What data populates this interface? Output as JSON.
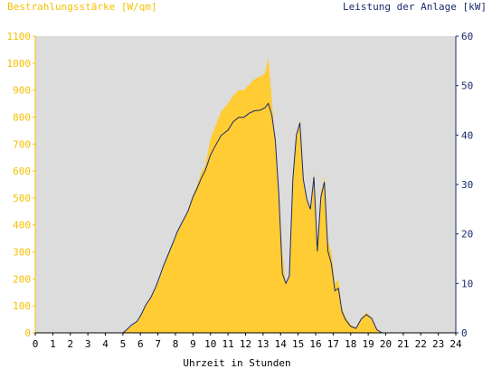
{
  "chart_data": {
    "type": "area",
    "title_left": "Bestrahlungsstärke [W/qm]",
    "title_right": "Leistung der Anlage [kW]",
    "xlabel": "Uhrzeit in Stunden",
    "x_ticks": [
      0,
      1,
      2,
      3,
      4,
      5,
      6,
      7,
      8,
      9,
      10,
      11,
      12,
      13,
      14,
      15,
      16,
      17,
      18,
      19,
      20,
      21,
      22,
      23,
      24
    ],
    "y_left_ticks": [
      0,
      100,
      200,
      300,
      400,
      500,
      600,
      700,
      800,
      900,
      1000,
      1100
    ],
    "y_right_ticks": [
      0,
      10,
      20,
      30,
      40,
      50,
      60
    ],
    "xlim": [
      0,
      24
    ],
    "ylim_left": [
      0,
      1100
    ],
    "ylim_right": [
      0,
      60
    ],
    "grid": false,
    "colors": {
      "plot_bg": "#dcdcdc",
      "irradiance": "#ffcc33",
      "power": "#1a2a6e",
      "left_axis_text": "#f5c000",
      "right_axis_text": "#1a2a6e",
      "axis_text": "#000000"
    },
    "series": [
      {
        "axis": "left",
        "style": "filled-area",
        "x": [
          0,
          5.0,
          5.2,
          5.5,
          5.8,
          6.0,
          6.3,
          6.6,
          6.9,
          7.1,
          7.3,
          7.6,
          7.9,
          8.1,
          8.4,
          8.7,
          9.0,
          9.2,
          9.5,
          9.7,
          10.0,
          10.3,
          10.6,
          11.0,
          11.3,
          11.6,
          11.9,
          12.2,
          12.5,
          12.8,
          13.1,
          13.3,
          13.5,
          13.7,
          13.9,
          14.1,
          14.3,
          14.5,
          14.7,
          14.9,
          15.1,
          15.3,
          15.5,
          15.7,
          15.9,
          16.1,
          16.3,
          16.5,
          16.7,
          16.9,
          17.1,
          17.3,
          17.5,
          17.7,
          18.0,
          18.3,
          18.6,
          18.9,
          19.2,
          19.5,
          19.8,
          20.0,
          24
        ],
        "values": [
          0,
          0,
          10,
          25,
          40,
          60,
          100,
          130,
          170,
          200,
          240,
          290,
          340,
          370,
          410,
          450,
          510,
          540,
          600,
          620,
          720,
          770,
          820,
          850,
          880,
          900,
          900,
          920,
          940,
          950,
          960,
          1020,
          860,
          700,
          520,
          300,
          180,
          210,
          560,
          720,
          790,
          560,
          490,
          460,
          600,
          340,
          520,
          580,
          340,
          300,
          180,
          200,
          90,
          60,
          30,
          20,
          55,
          75,
          55,
          15,
          0,
          0,
          0
        ]
      },
      {
        "axis": "right",
        "style": "line",
        "x": [
          0,
          5.0,
          5.2,
          5.5,
          5.8,
          6.0,
          6.3,
          6.6,
          6.9,
          7.1,
          7.3,
          7.6,
          7.9,
          8.1,
          8.4,
          8.7,
          9.0,
          9.2,
          9.5,
          9.7,
          10.0,
          10.3,
          10.6,
          11.0,
          11.3,
          11.6,
          11.9,
          12.2,
          12.5,
          12.8,
          13.1,
          13.3,
          13.5,
          13.7,
          13.9,
          14.1,
          14.3,
          14.5,
          14.7,
          14.9,
          15.1,
          15.3,
          15.5,
          15.7,
          15.9,
          16.1,
          16.3,
          16.5,
          16.7,
          16.9,
          17.1,
          17.3,
          17.5,
          17.7,
          18.0,
          18.3,
          18.6,
          18.9,
          19.2,
          19.5,
          19.8,
          20.0,
          24
        ],
        "values": [
          0,
          0,
          0.6,
          1.6,
          2.3,
          3.4,
          5.6,
          7.2,
          9.5,
          11.4,
          13.4,
          16.0,
          18.6,
          20.4,
          22.5,
          24.5,
          27.5,
          29.0,
          31.5,
          32.8,
          36.0,
          38.0,
          39.9,
          41.0,
          42.7,
          43.6,
          43.6,
          44.4,
          44.9,
          45.0,
          45.5,
          46.4,
          44.0,
          39.0,
          28.0,
          12.0,
          10.0,
          11.5,
          31.0,
          40.0,
          42.5,
          31.0,
          27.0,
          25.0,
          31.5,
          16.5,
          27.5,
          30.5,
          16.5,
          14.0,
          8.5,
          9.0,
          4.3,
          2.7,
          1.3,
          0.9,
          2.8,
          3.7,
          2.9,
          0.6,
          0,
          0,
          0
        ]
      }
    ]
  }
}
